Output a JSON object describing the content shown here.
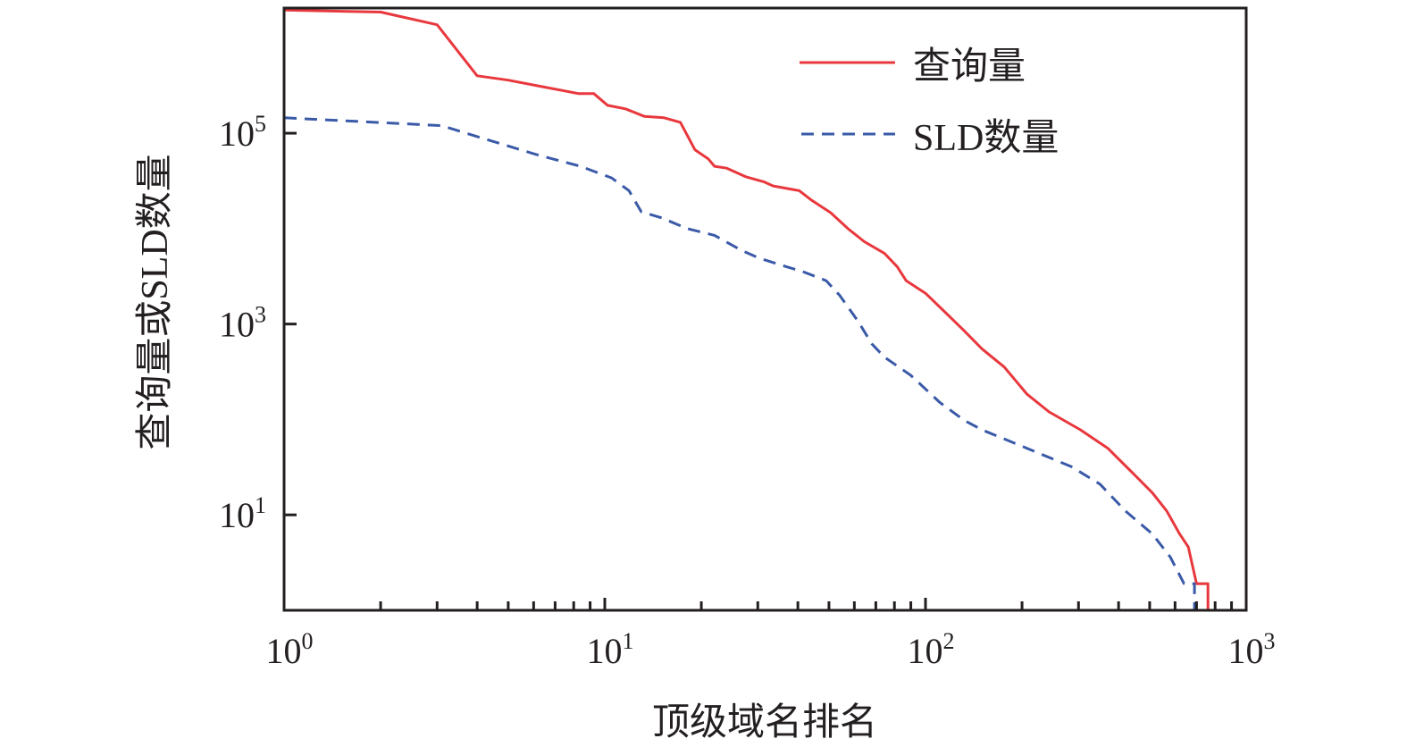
{
  "chart_data": {
    "type": "line",
    "title": "",
    "xlabel": "顶级域名排名",
    "ylabel": "查询量或SLD数量",
    "xscale": "log",
    "yscale": "log",
    "xlim": [
      1,
      1000
    ],
    "ylim": [
      1,
      2050000
    ],
    "x_ticks": [
      {
        "base": "10",
        "exp": "0",
        "value": 1
      },
      {
        "base": "10",
        "exp": "1",
        "value": 10
      },
      {
        "base": "10",
        "exp": "2",
        "value": 100
      },
      {
        "base": "10",
        "exp": "3",
        "value": 1000
      }
    ],
    "y_ticks": [
      {
        "base": "10",
        "exp": "1",
        "value": 10
      },
      {
        "base": "10",
        "exp": "3",
        "value": 1000
      },
      {
        "base": "10",
        "exp": "5",
        "value": 100000
      }
    ],
    "grid": false,
    "legend_position": "top-right",
    "series": [
      {
        "name": "查询量",
        "color": "#e8383d",
        "style": "solid",
        "x": [
          1,
          2,
          3,
          4,
          5,
          6.3,
          8.3,
          9.25,
          10.2,
          11.6,
          13.3,
          15.3,
          17.2,
          19.1,
          21,
          22,
          24,
          27.5,
          31.3,
          33.5,
          40.4,
          44,
          50.6,
          57.5,
          64.5,
          74.5,
          81.6,
          87,
          100,
          116,
          132,
          150,
          176,
          207,
          243,
          304,
          370,
          450,
          510,
          565,
          620,
          660,
          700,
          760,
          760
        ],
        "y": [
          1950000,
          1860000,
          1370000,
          400000,
          360000,
          310000,
          260000,
          260000,
          196000,
          180000,
          150000,
          145000,
          130000,
          67000,
          54000,
          45000,
          43000,
          35000,
          31000,
          28000,
          25000,
          20000,
          14700,
          9900,
          7300,
          5500,
          4000,
          2850,
          2100,
          1300,
          850,
          550,
          355,
          185,
          120,
          78,
          50,
          26,
          17,
          11,
          6.3,
          4.6,
          1.9,
          1.9,
          1
        ]
      },
      {
        "name": "SLD数量",
        "color": "#3a5aa8",
        "style": "dashed",
        "x": [
          1,
          3.1,
          4.1,
          6.1,
          8.4,
          10.5,
          11.9,
          13,
          15,
          18.1,
          22,
          26.7,
          30.3,
          36.8,
          41.8,
          49,
          54,
          61.6,
          68,
          74.5,
          90,
          111,
          132,
          150,
          207,
          285,
          350,
          420,
          510,
          580,
          640,
          690,
          690
        ],
        "y": [
          145000,
          120000,
          90000,
          60000,
          45000,
          34000,
          25000,
          15000,
          13000,
          10000,
          8500,
          5900,
          4900,
          4000,
          3500,
          2850,
          2000,
          1070,
          620,
          450,
          290,
          150,
          98,
          78,
          50,
          32,
          21,
          11,
          6.3,
          3.6,
          1.9,
          1.9,
          1
        ]
      }
    ]
  }
}
